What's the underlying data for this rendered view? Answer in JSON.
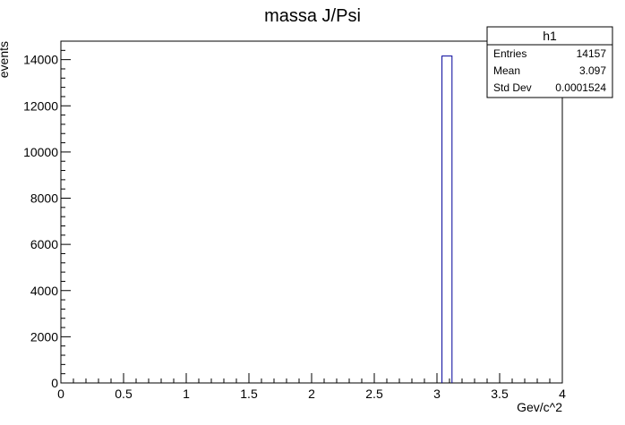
{
  "chart_data": {
    "type": "bar",
    "title": "massa J/Psi",
    "xlabel": "Gev/c^2",
    "ylabel": "events",
    "xlim": [
      0,
      4
    ],
    "ylim": [
      0,
      14800
    ],
    "x_ticks": [
      "0",
      "0.5",
      "1",
      "1.5",
      "2",
      "2.5",
      "3",
      "3.5",
      "4"
    ],
    "y_ticks": [
      "0",
      "2000",
      "4000",
      "6000",
      "8000",
      "10000",
      "12000",
      "14000"
    ],
    "bins": [
      {
        "x_low": 3.04,
        "x_high": 3.12,
        "value": 14157
      }
    ],
    "line_color": "#000099",
    "stats": {
      "title": "h1",
      "rows": [
        {
          "label": "Entries",
          "value": "14157"
        },
        {
          "label": "Mean",
          "value": "3.097"
        },
        {
          "label": "Std Dev",
          "value": "0.0001524"
        }
      ]
    }
  }
}
